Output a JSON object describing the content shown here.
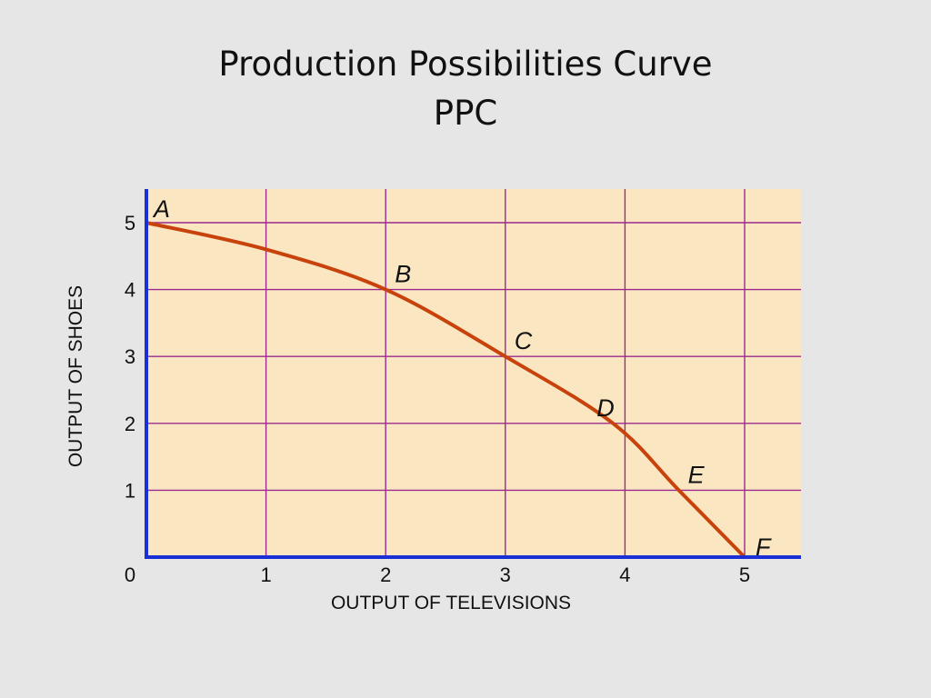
{
  "slide": {
    "title_line1": "Production Possibilities Curve",
    "title_line2": "PPC"
  },
  "chart_data": {
    "type": "line",
    "title": "",
    "xlabel": "OUTPUT OF TELEVISIONS",
    "ylabel": "OUTPUT OF SHOES",
    "xlim": [
      0,
      5.5
    ],
    "ylim": [
      0,
      5.5
    ],
    "origin_label": "0",
    "x_ticks": [
      1,
      2,
      3,
      4,
      5
    ],
    "y_ticks": [
      1,
      2,
      3,
      4,
      5
    ],
    "grid": true,
    "series": [
      {
        "x": [
          0,
          1,
          2,
          3,
          3.9,
          4.45,
          5
        ],
        "y": [
          5,
          4.6,
          4,
          3,
          2,
          1,
          0
        ]
      }
    ],
    "points": [
      {
        "label": "A",
        "x": 0,
        "y": 5
      },
      {
        "label": "B",
        "x": 2,
        "y": 4
      },
      {
        "label": "C",
        "x": 3,
        "y": 3
      },
      {
        "label": "D",
        "x": 3.9,
        "y": 2
      },
      {
        "label": "E",
        "x": 4.45,
        "y": 1
      },
      {
        "label": "F",
        "x": 5,
        "y": 0
      }
    ],
    "colors": {
      "plot_background": "#fbe6c2",
      "grid": "#9b2a8e",
      "axes": "#1a2fd6",
      "curve": "#c8420c"
    }
  }
}
